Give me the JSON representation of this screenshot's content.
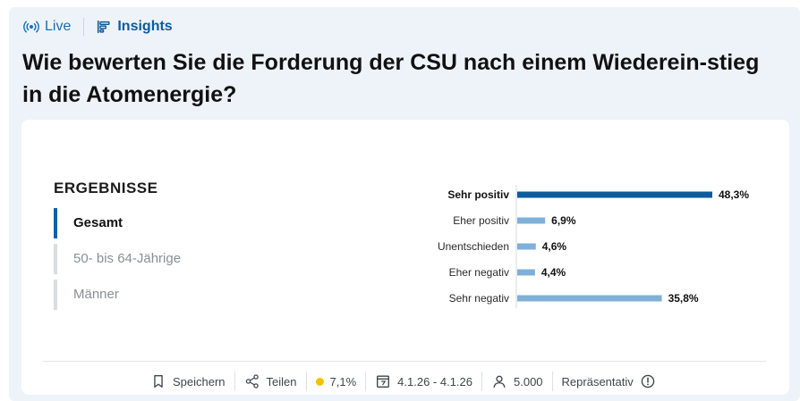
{
  "header": {
    "live_label": "Live",
    "insights_label": "Insights"
  },
  "question": "Wie bewerten Sie die Forderung der CSU nach einem Wiederein-stieg in die Atomenergie?",
  "results_title": "ERGEBNISSE",
  "filters": [
    {
      "label": "Gesamt",
      "active": true
    },
    {
      "label": "50- bis 64-Jährige",
      "active": false
    },
    {
      "label": "Männer",
      "active": false
    }
  ],
  "chart_data": {
    "type": "bar",
    "orientation": "horizontal",
    "categories": [
      "Sehr positiv",
      "Eher positiv",
      "Unentschieden",
      "Eher negativ",
      "Sehr negativ"
    ],
    "values": [
      48.3,
      6.9,
      4.6,
      4.4,
      35.8
    ],
    "value_labels": [
      "48,3%",
      "6,9%",
      "4,6%",
      "4,4%",
      "35,8%"
    ],
    "highlighted_category": "Sehr positiv",
    "colors": {
      "highlight": "#0d5b9e",
      "default": "#7fb0d8"
    },
    "title": "",
    "xlabel": "",
    "ylabel": "",
    "xlim": [
      0,
      48.3
    ],
    "grid": false,
    "legend": "none"
  },
  "footer": {
    "save_label": "Speichern",
    "share_label": "Teilen",
    "error_margin": "7,1%",
    "date_range": "4.1.26 - 4.1.26",
    "sample_size": "5.000",
    "representative_label": "Repräsentativ"
  },
  "colors": {
    "accent": "#1a6fb5",
    "status_dot": "#f2c200",
    "background": "#eef3f9"
  }
}
